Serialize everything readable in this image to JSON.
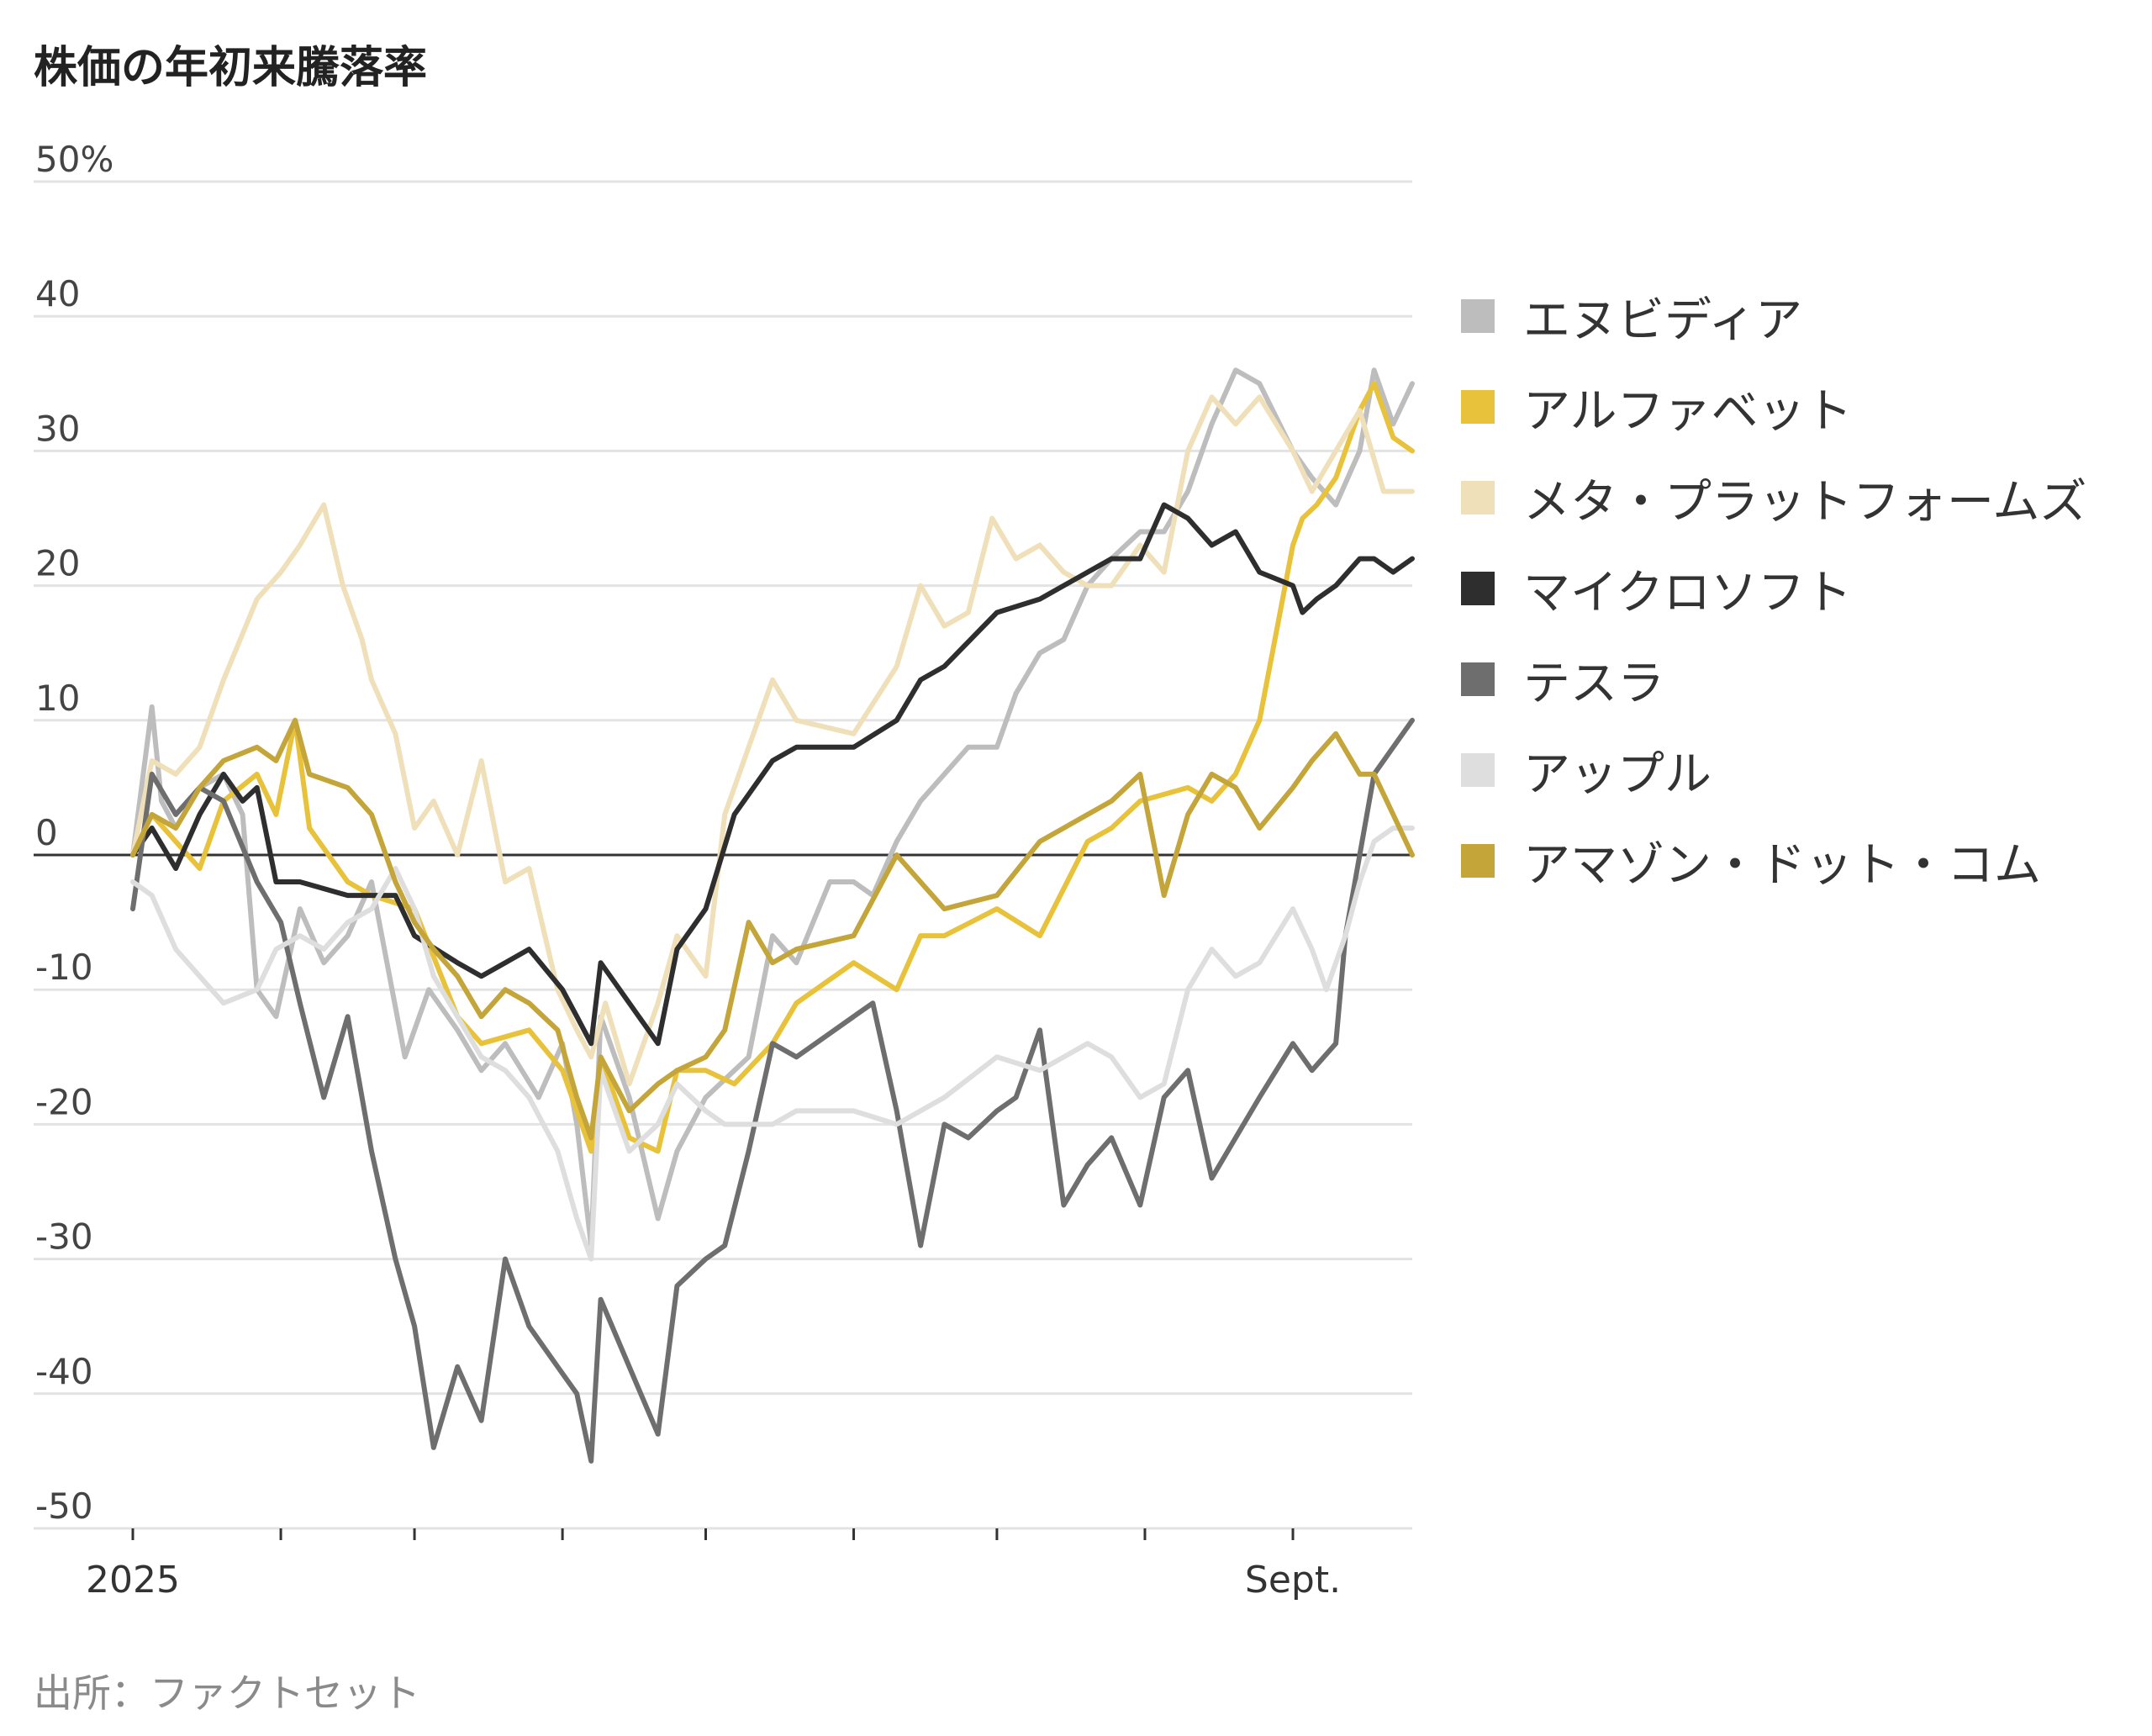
{
  "title": "株価の年初来騰落率",
  "source": "出所：ファクトセット",
  "chart_data": {
    "type": "line",
    "title": "株価の年初来騰落率",
    "xlabel": "",
    "ylabel": "",
    "x_range": [
      "2025-01-01",
      "2025-09-26"
    ],
    "x_ticks": [
      {
        "date": "2025-01-01",
        "label": "2025"
      },
      {
        "date": "2025-02-01",
        "label": ""
      },
      {
        "date": "2025-03-01",
        "label": ""
      },
      {
        "date": "2025-04-01",
        "label": ""
      },
      {
        "date": "2025-05-01",
        "label": ""
      },
      {
        "date": "2025-06-01",
        "label": ""
      },
      {
        "date": "2025-07-01",
        "label": ""
      },
      {
        "date": "2025-08-01",
        "label": ""
      },
      {
        "date": "2025-09-01",
        "label": "Sept."
      }
    ],
    "ylim": [
      -50,
      50
    ],
    "y_ticks": [
      {
        "value": 50,
        "label": "50%"
      },
      {
        "value": 40,
        "label": "40"
      },
      {
        "value": 30,
        "label": "30"
      },
      {
        "value": 20,
        "label": "20"
      },
      {
        "value": 10,
        "label": "10"
      },
      {
        "value": 0,
        "label": "0"
      },
      {
        "value": -10,
        "label": "-10"
      },
      {
        "value": -20,
        "label": "-20"
      },
      {
        "value": -30,
        "label": "-30"
      },
      {
        "value": -40,
        "label": "-40"
      },
      {
        "value": -50,
        "label": "-50"
      }
    ],
    "grid": true,
    "legend_position": "right",
    "series": [
      {
        "name": "エヌビディア",
        "color": "#bdbdbd",
        "x": [
          "2025-01-01",
          "2025-01-05",
          "2025-01-07",
          "2025-01-10",
          "2025-01-15",
          "2025-01-20",
          "2025-01-24",
          "2025-01-27",
          "2025-01-31",
          "2025-02-05",
          "2025-02-10",
          "2025-02-15",
          "2025-02-20",
          "2025-02-27",
          "2025-03-04",
          "2025-03-10",
          "2025-03-15",
          "2025-03-20",
          "2025-03-27",
          "2025-04-01",
          "2025-04-04",
          "2025-04-07",
          "2025-04-09",
          "2025-04-15",
          "2025-04-21",
          "2025-04-25",
          "2025-05-01",
          "2025-05-10",
          "2025-05-15",
          "2025-05-20",
          "2025-05-27",
          "2025-06-01",
          "2025-06-05",
          "2025-06-10",
          "2025-06-15",
          "2025-06-20",
          "2025-06-25",
          "2025-07-01",
          "2025-07-05",
          "2025-07-10",
          "2025-07-15",
          "2025-07-20",
          "2025-07-25",
          "2025-07-31",
          "2025-08-05",
          "2025-08-10",
          "2025-08-15",
          "2025-08-20",
          "2025-08-25",
          "2025-09-01",
          "2025-09-05",
          "2025-09-10",
          "2025-09-15",
          "2025-09-18",
          "2025-09-22",
          "2025-09-26"
        ],
        "values": [
          0,
          11,
          4,
          2,
          5,
          6,
          3,
          -10,
          -12,
          -4,
          -8,
          -6,
          -2,
          -15,
          -10,
          -13,
          -16,
          -14,
          -18,
          -14,
          -20,
          -29,
          -12,
          -18,
          -27,
          -22,
          -18,
          -15,
          -6,
          -8,
          -2,
          -2,
          -3,
          1,
          4,
          6,
          8,
          8,
          12,
          15,
          16,
          20,
          22,
          24,
          24,
          27,
          32,
          36,
          35,
          30,
          28,
          26,
          30,
          36,
          32,
          35
        ]
      },
      {
        "name": "アルファベット",
        "color": "#e8c23a",
        "x": [
          "2025-01-01",
          "2025-01-05",
          "2025-01-10",
          "2025-01-15",
          "2025-01-20",
          "2025-01-27",
          "2025-01-31",
          "2025-02-04",
          "2025-02-07",
          "2025-02-15",
          "2025-02-20",
          "2025-03-01",
          "2025-03-10",
          "2025-03-15",
          "2025-03-25",
          "2025-04-01",
          "2025-04-04",
          "2025-04-07",
          "2025-04-09",
          "2025-04-15",
          "2025-04-21",
          "2025-04-25",
          "2025-05-01",
          "2025-05-07",
          "2025-05-15",
          "2025-05-20",
          "2025-06-01",
          "2025-06-10",
          "2025-06-15",
          "2025-06-20",
          "2025-07-01",
          "2025-07-10",
          "2025-07-20",
          "2025-07-25",
          "2025-07-31",
          "2025-08-10",
          "2025-08-15",
          "2025-08-20",
          "2025-08-25",
          "2025-09-01",
          "2025-09-03",
          "2025-09-06",
          "2025-09-10",
          "2025-09-15",
          "2025-09-18",
          "2025-09-22",
          "2025-09-26"
        ],
        "values": [
          0,
          3,
          1,
          -1,
          4,
          6,
          3,
          10,
          2,
          -2,
          -3,
          -4,
          -12,
          -14,
          -13,
          -16,
          -19,
          -22,
          -15,
          -21,
          -22,
          -16,
          -16,
          -17,
          -14,
          -11,
          -8,
          -10,
          -6,
          -6,
          -4,
          -6,
          1,
          2,
          4,
          5,
          4,
          6,
          10,
          23,
          25,
          26,
          28,
          33,
          35,
          31,
          30
        ]
      },
      {
        "name": "メタ・プラットフォームズ",
        "color": "#efe0ba",
        "x": [
          "2025-01-01",
          "2025-01-05",
          "2025-01-10",
          "2025-01-15",
          "2025-01-20",
          "2025-01-27",
          "2025-02-01",
          "2025-02-05",
          "2025-02-10",
          "2025-02-14",
          "2025-02-18",
          "2025-02-20",
          "2025-02-25",
          "2025-03-01",
          "2025-03-05",
          "2025-03-10",
          "2025-03-15",
          "2025-03-20",
          "2025-03-25",
          "2025-03-31",
          "2025-04-04",
          "2025-04-07",
          "2025-04-10",
          "2025-04-15",
          "2025-04-21",
          "2025-04-25",
          "2025-05-01",
          "2025-05-05",
          "2025-05-15",
          "2025-05-20",
          "2025-06-01",
          "2025-06-10",
          "2025-06-15",
          "2025-06-20",
          "2025-06-25",
          "2025-06-30",
          "2025-07-05",
          "2025-07-10",
          "2025-07-15",
          "2025-07-20",
          "2025-07-25",
          "2025-07-31",
          "2025-08-05",
          "2025-08-10",
          "2025-08-15",
          "2025-08-20",
          "2025-08-25",
          "2025-09-01",
          "2025-09-05",
          "2025-09-10",
          "2025-09-15",
          "2025-09-20",
          "2025-09-26"
        ],
        "values": [
          0,
          7,
          6,
          8,
          13,
          19,
          21,
          23,
          26,
          20,
          16,
          13,
          9,
          2,
          4,
          0,
          7,
          -2,
          -1,
          -10,
          -13,
          -15,
          -11,
          -17,
          -11,
          -6,
          -9,
          3,
          13,
          10,
          9,
          14,
          20,
          17,
          18,
          25,
          22,
          23,
          21,
          20,
          20,
          23,
          21,
          30,
          34,
          32,
          34,
          30,
          27,
          30,
          33,
          27,
          27
        ]
      },
      {
        "name": "マイクロソフト",
        "color": "#2e2e2e",
        "x": [
          "2025-01-01",
          "2025-01-05",
          "2025-01-10",
          "2025-01-15",
          "2025-01-20",
          "2025-01-24",
          "2025-01-27",
          "2025-01-31",
          "2025-02-05",
          "2025-02-15",
          "2025-02-25",
          "2025-03-01",
          "2025-03-10",
          "2025-03-15",
          "2025-03-20",
          "2025-03-25",
          "2025-04-01",
          "2025-04-04",
          "2025-04-07",
          "2025-04-09",
          "2025-04-15",
          "2025-04-21",
          "2025-04-25",
          "2025-05-01",
          "2025-05-07",
          "2025-05-15",
          "2025-05-20",
          "2025-06-01",
          "2025-06-10",
          "2025-06-15",
          "2025-06-20",
          "2025-07-01",
          "2025-07-10",
          "2025-07-20",
          "2025-07-25",
          "2025-07-31",
          "2025-08-05",
          "2025-08-10",
          "2025-08-15",
          "2025-08-20",
          "2025-08-25",
          "2025-09-01",
          "2025-09-03",
          "2025-09-06",
          "2025-09-10",
          "2025-09-15",
          "2025-09-18",
          "2025-09-22",
          "2025-09-26"
        ],
        "values": [
          0,
          2,
          -1,
          3,
          6,
          4,
          5,
          -2,
          -2,
          -3,
          -3,
          -6,
          -8,
          -9,
          -8,
          -7,
          -10,
          -12,
          -14,
          -8,
          -11,
          -14,
          -7,
          -4,
          3,
          7,
          8,
          8,
          10,
          13,
          14,
          18,
          19,
          21,
          22,
          22,
          26,
          25,
          23,
          24,
          21,
          20,
          18,
          19,
          20,
          22,
          22,
          21,
          22
        ]
      },
      {
        "name": "テスラ",
        "color": "#6e6e6e",
        "x": [
          "2025-01-01",
          "2025-01-05",
          "2025-01-10",
          "2025-01-15",
          "2025-01-20",
          "2025-01-27",
          "2025-02-01",
          "2025-02-05",
          "2025-02-10",
          "2025-02-15",
          "2025-02-20",
          "2025-02-25",
          "2025-03-01",
          "2025-03-05",
          "2025-03-10",
          "2025-03-15",
          "2025-03-20",
          "2025-03-25",
          "2025-03-31",
          "2025-04-04",
          "2025-04-07",
          "2025-04-09",
          "2025-04-15",
          "2025-04-21",
          "2025-04-25",
          "2025-05-01",
          "2025-05-05",
          "2025-05-10",
          "2025-05-15",
          "2025-05-20",
          "2025-06-01",
          "2025-06-05",
          "2025-06-10",
          "2025-06-15",
          "2025-06-20",
          "2025-06-25",
          "2025-07-01",
          "2025-07-05",
          "2025-07-10",
          "2025-07-15",
          "2025-07-20",
          "2025-07-25",
          "2025-07-31",
          "2025-08-05",
          "2025-08-10",
          "2025-08-15",
          "2025-08-20",
          "2025-08-25",
          "2025-09-01",
          "2025-09-05",
          "2025-09-10",
          "2025-09-12",
          "2025-09-15",
          "2025-09-18",
          "2025-09-22",
          "2025-09-26"
        ],
        "values": [
          -4,
          6,
          3,
          5,
          4,
          -2,
          -5,
          -11,
          -18,
          -12,
          -22,
          -30,
          -35,
          -44,
          -38,
          -42,
          -30,
          -35,
          -38,
          -40,
          -45,
          -33,
          -38,
          -43,
          -32,
          -30,
          -29,
          -22,
          -14,
          -15,
          -12,
          -11,
          -19,
          -29,
          -20,
          -21,
          -19,
          -18,
          -13,
          -26,
          -23,
          -21,
          -26,
          -18,
          -16,
          -24,
          -21,
          -18,
          -14,
          -16,
          -14,
          -6,
          0,
          6,
          8,
          10
        ]
      },
      {
        "name": "アップル",
        "color": "#dedede",
        "x": [
          "2025-01-01",
          "2025-01-05",
          "2025-01-10",
          "2025-01-15",
          "2025-01-20",
          "2025-01-27",
          "2025-01-31",
          "2025-02-05",
          "2025-02-10",
          "2025-02-15",
          "2025-02-20",
          "2025-02-25",
          "2025-03-01",
          "2025-03-05",
          "2025-03-10",
          "2025-03-15",
          "2025-03-20",
          "2025-03-25",
          "2025-03-31",
          "2025-04-04",
          "2025-04-07",
          "2025-04-09",
          "2025-04-15",
          "2025-04-21",
          "2025-04-25",
          "2025-05-01",
          "2025-05-05",
          "2025-05-15",
          "2025-05-20",
          "2025-06-01",
          "2025-06-10",
          "2025-06-20",
          "2025-07-01",
          "2025-07-10",
          "2025-07-20",
          "2025-07-25",
          "2025-07-31",
          "2025-08-05",
          "2025-08-10",
          "2025-08-15",
          "2025-08-20",
          "2025-08-25",
          "2025-09-01",
          "2025-09-05",
          "2025-09-08",
          "2025-09-12",
          "2025-09-15",
          "2025-09-18",
          "2025-09-22",
          "2025-09-26"
        ],
        "values": [
          -2,
          -3,
          -7,
          -9,
          -11,
          -10,
          -7,
          -6,
          -7,
          -5,
          -4,
          -1,
          -4,
          -9,
          -12,
          -15,
          -16,
          -18,
          -22,
          -27,
          -30,
          -16,
          -22,
          -20,
          -17,
          -19,
          -20,
          -20,
          -19,
          -19,
          -20,
          -18,
          -15,
          -16,
          -14,
          -15,
          -18,
          -17,
          -10,
          -7,
          -9,
          -8,
          -4,
          -7,
          -10,
          -6,
          -2,
          1,
          2,
          2
        ]
      },
      {
        "name": "アマゾン・ドット・コム",
        "color": "#c4a53a",
        "x": [
          "2025-01-01",
          "2025-01-05",
          "2025-01-10",
          "2025-01-15",
          "2025-01-20",
          "2025-01-27",
          "2025-01-31",
          "2025-02-04",
          "2025-02-07",
          "2025-02-15",
          "2025-02-20",
          "2025-02-25",
          "2025-03-01",
          "2025-03-05",
          "2025-03-10",
          "2025-03-15",
          "2025-03-20",
          "2025-03-25",
          "2025-03-31",
          "2025-04-04",
          "2025-04-07",
          "2025-04-09",
          "2025-04-15",
          "2025-04-21",
          "2025-04-25",
          "2025-05-01",
          "2025-05-05",
          "2025-05-10",
          "2025-05-15",
          "2025-05-20",
          "2025-06-01",
          "2025-06-10",
          "2025-06-20",
          "2025-07-01",
          "2025-07-10",
          "2025-07-20",
          "2025-07-25",
          "2025-07-31",
          "2025-08-05",
          "2025-08-10",
          "2025-08-15",
          "2025-08-20",
          "2025-08-25",
          "2025-09-01",
          "2025-09-05",
          "2025-09-10",
          "2025-09-15",
          "2025-09-18",
          "2025-09-22",
          "2025-09-26"
        ],
        "values": [
          0,
          3,
          2,
          5,
          7,
          8,
          7,
          10,
          6,
          5,
          3,
          -2,
          -5,
          -7,
          -9,
          -12,
          -10,
          -11,
          -13,
          -18,
          -21,
          -15,
          -19,
          -17,
          -16,
          -15,
          -13,
          -5,
          -8,
          -7,
          -6,
          0,
          -4,
          -3,
          1,
          3,
          4,
          6,
          -3,
          3,
          6,
          5,
          2,
          5,
          7,
          9,
          6,
          6,
          3,
          0
        ]
      }
    ]
  }
}
